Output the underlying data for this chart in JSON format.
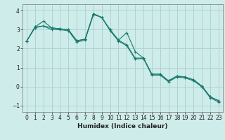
{
  "xlabel": "Humidex (Indice chaleur)",
  "bg_color": "#ceecea",
  "grid_color": "#aed4d0",
  "line_color": "#1a7a6e",
  "xlim": [
    -0.5,
    23.5
  ],
  "ylim": [
    -1.35,
    4.35
  ],
  "xticks": [
    0,
    1,
    2,
    3,
    4,
    5,
    6,
    7,
    8,
    9,
    10,
    11,
    12,
    13,
    14,
    15,
    16,
    17,
    18,
    19,
    20,
    21,
    22,
    23
  ],
  "yticks": [
    -1,
    0,
    1,
    2,
    3,
    4
  ],
  "series1_x": [
    0,
    1,
    2,
    3,
    4,
    5,
    6,
    7,
    8,
    9,
    10,
    11,
    12,
    13,
    14,
    15,
    16,
    17,
    18,
    19,
    20,
    21,
    22,
    23
  ],
  "series1_y": [
    2.4,
    3.15,
    3.2,
    3.1,
    3.05,
    3.0,
    2.42,
    2.5,
    3.85,
    3.65,
    3.0,
    2.45,
    2.85,
    1.85,
    1.5,
    0.65,
    0.65,
    0.3,
    0.55,
    0.5,
    0.35,
    0.02,
    -0.55,
    -0.75
  ],
  "series2_x": [
    0,
    1,
    2,
    3,
    4,
    5,
    6,
    7,
    8,
    9,
    10,
    11,
    12,
    13,
    14,
    15,
    16,
    17,
    18,
    19,
    20,
    21,
    22,
    23
  ],
  "series2_y": [
    2.4,
    3.15,
    3.45,
    3.1,
    3.05,
    3.0,
    2.42,
    2.5,
    3.85,
    3.65,
    3.0,
    2.45,
    2.2,
    1.5,
    1.5,
    0.65,
    0.65,
    0.3,
    0.55,
    0.5,
    0.35,
    0.02,
    -0.55,
    -0.75
  ],
  "series3_x": [
    0,
    1,
    2,
    3,
    4,
    5,
    6,
    7,
    8,
    9,
    10,
    11,
    12,
    13,
    14,
    15,
    16,
    17,
    18,
    19,
    20,
    21,
    22,
    23
  ],
  "series3_y": [
    2.4,
    3.1,
    3.2,
    3.0,
    3.0,
    2.95,
    2.35,
    2.45,
    3.8,
    3.65,
    2.95,
    2.4,
    2.15,
    1.45,
    1.48,
    0.6,
    0.6,
    0.25,
    0.5,
    0.45,
    0.3,
    -0.02,
    -0.6,
    -0.82
  ],
  "xlabel_fontsize": 6.5,
  "tick_fontsize": 5.5
}
